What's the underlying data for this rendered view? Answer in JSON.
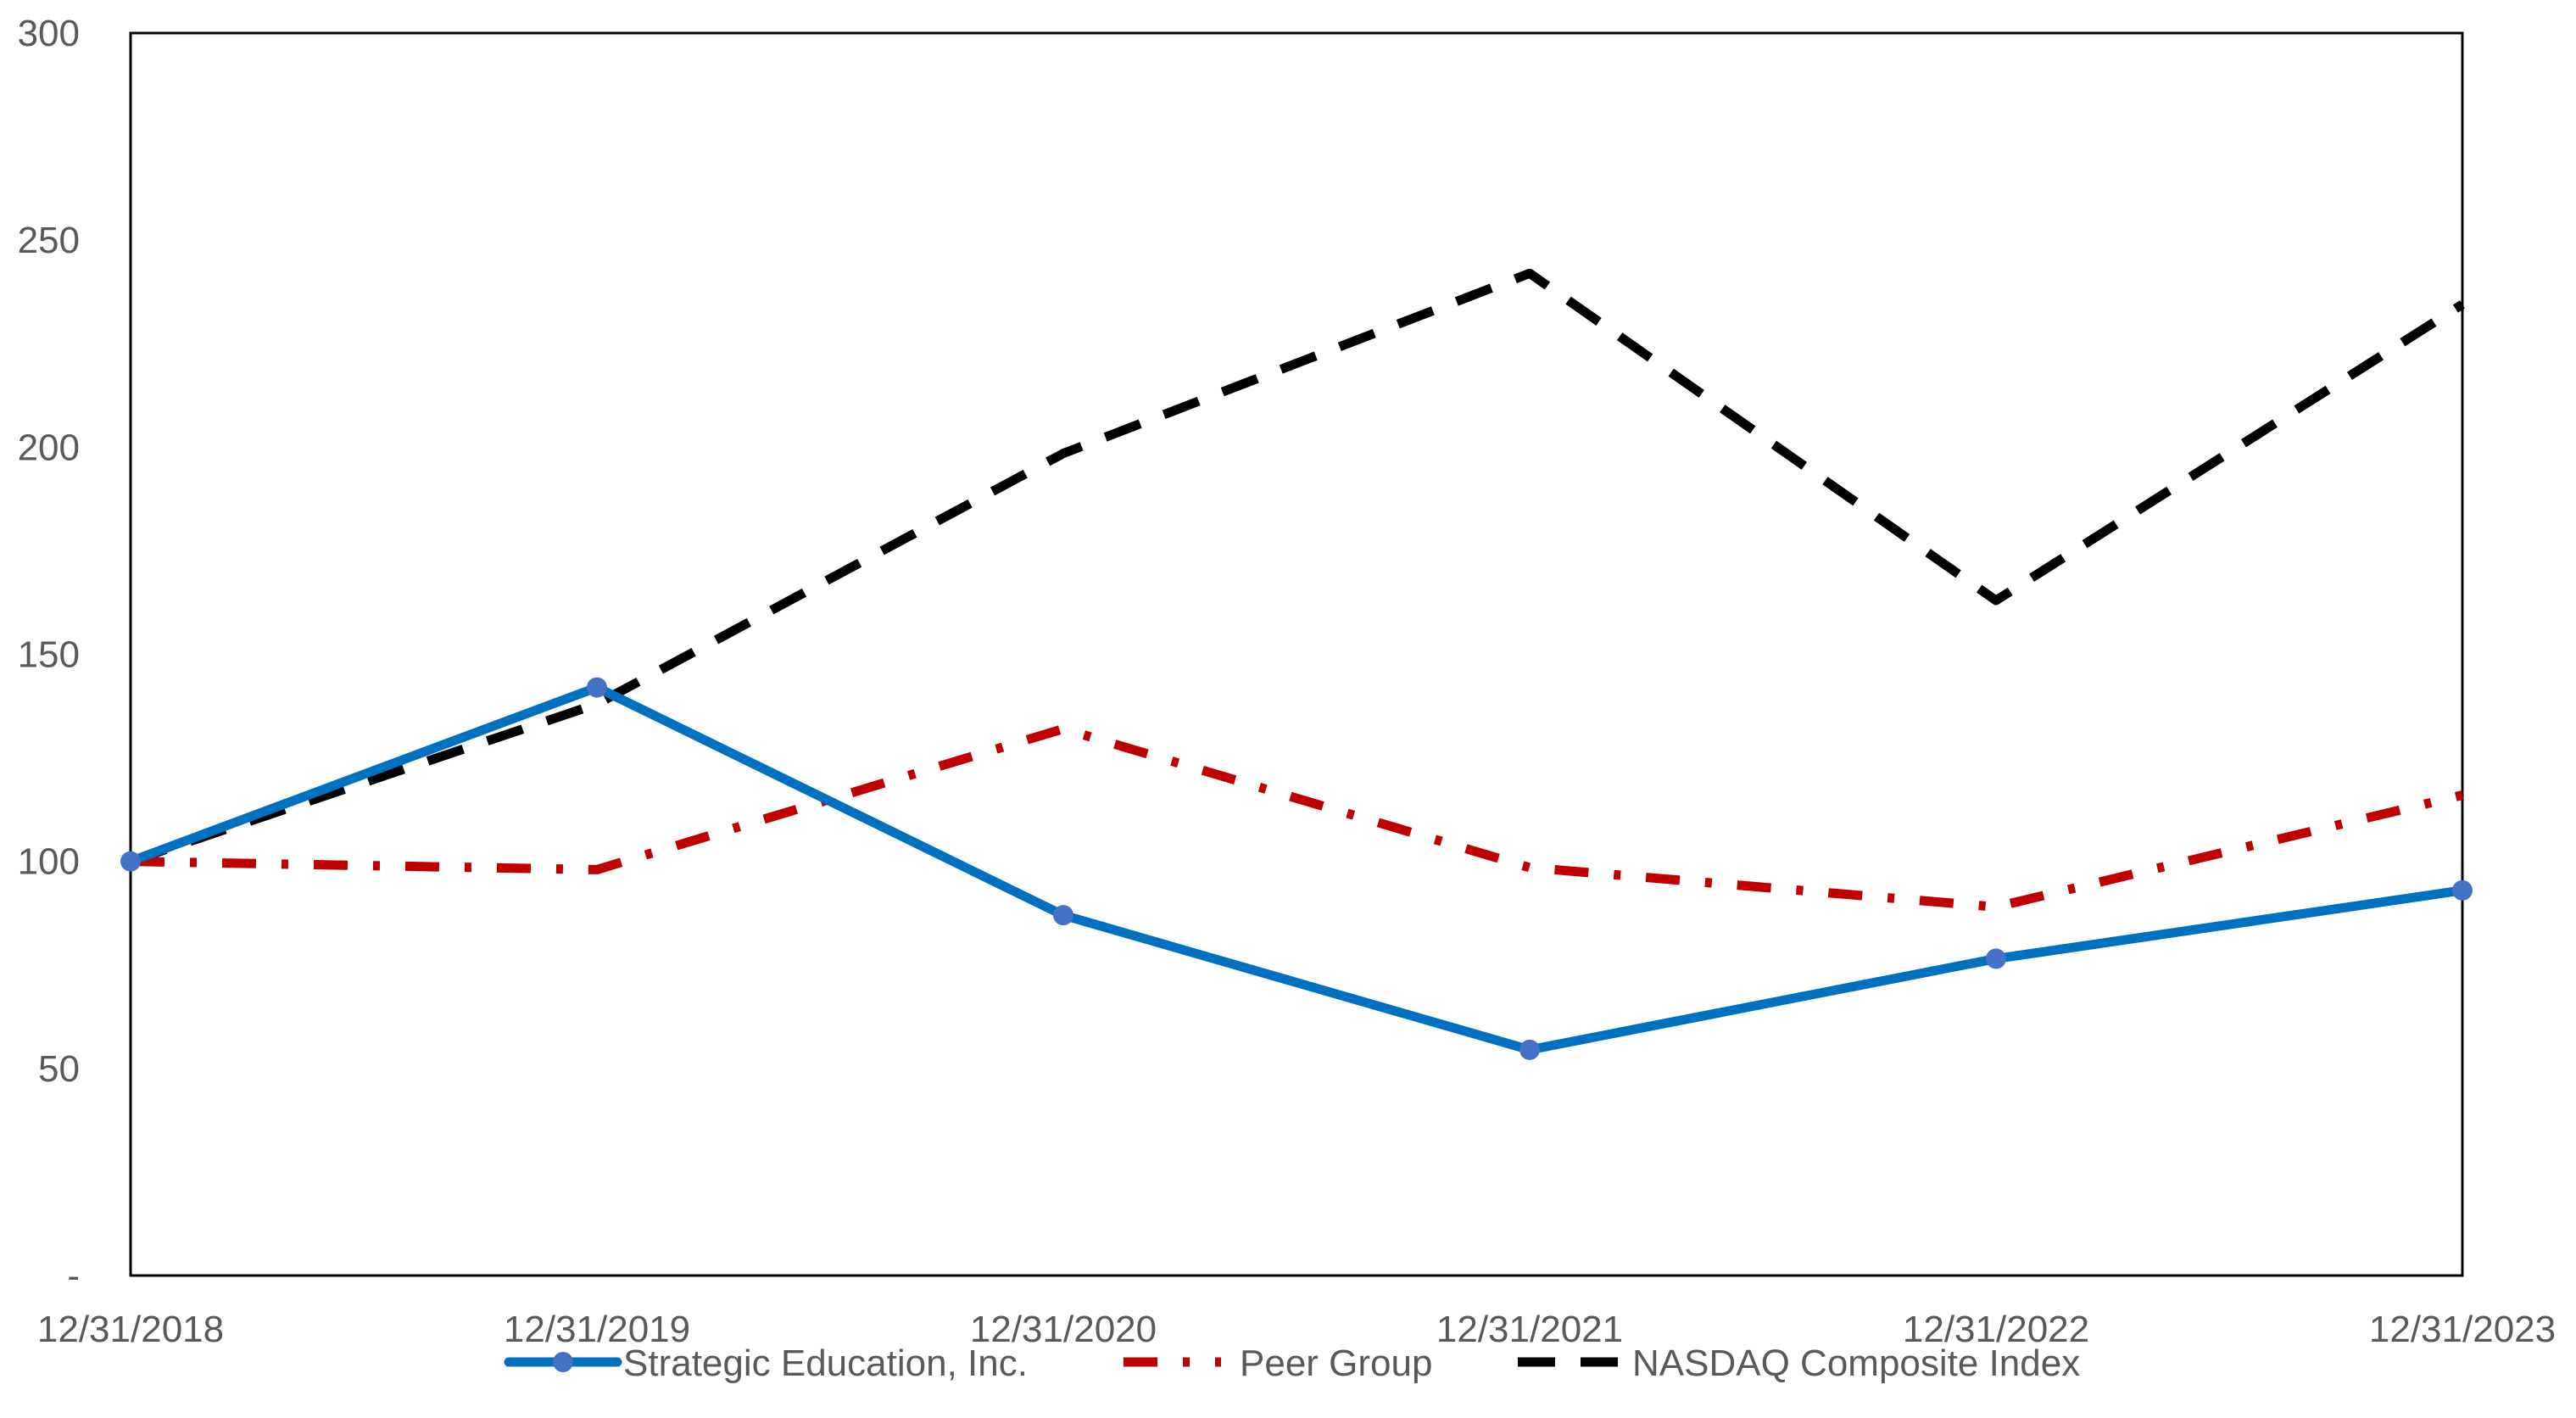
{
  "chart_data": {
    "type": "line",
    "categories": [
      "12/31/2018",
      "12/31/2019",
      "12/31/2020",
      "12/31/2021",
      "12/31/2022",
      "12/31/2023"
    ],
    "ylim": [
      0,
      300
    ],
    "yticks": [
      0,
      50,
      100,
      150,
      200,
      250,
      300
    ],
    "ytick_labels": [
      "-",
      "50",
      "100",
      "150",
      "200",
      "250",
      "300"
    ],
    "grid": false,
    "legend_position": "bottom",
    "series": [
      {
        "name": "Strategic Education, Inc.",
        "values": [
          100,
          142,
          87,
          54.5,
          76.5,
          93
        ],
        "color": "#0070C0",
        "style": "solid",
        "markers": true
      },
      {
        "name": "Peer Group",
        "values": [
          100,
          98,
          132,
          98.5,
          89,
          116
        ],
        "color": "#C00000",
        "style": "dash-dot",
        "markers": false
      },
      {
        "name": "NASDAQ Composite Index",
        "values": [
          100,
          138,
          198.5,
          242,
          163,
          234.5
        ],
        "color": "#000000",
        "style": "dash",
        "markers": false
      }
    ]
  }
}
